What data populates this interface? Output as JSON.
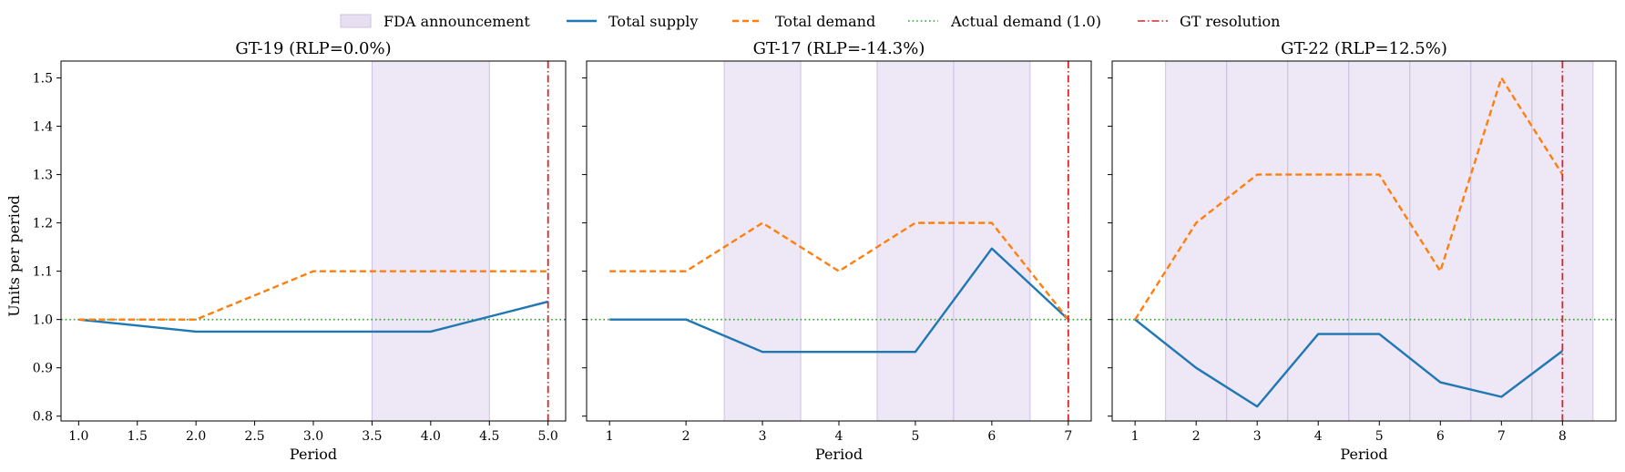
{
  "legend": {
    "items": [
      {
        "key": "fda",
        "label": "FDA announcement"
      },
      {
        "key": "supply",
        "label": "Total supply"
      },
      {
        "key": "demand",
        "label": "Total demand"
      },
      {
        "key": "actual",
        "label": "Actual demand (1.0)"
      },
      {
        "key": "gt",
        "label": "GT resolution"
      }
    ]
  },
  "colors": {
    "supply": "#1f77b4",
    "demand": "#ff7f0e",
    "actual": "#2ca02c",
    "gt": "#d62728",
    "fda_fill": "#e8dff2",
    "fda_edge": "#cfc0e3"
  },
  "shared_ylabel": "Units per period",
  "chart_data": [
    {
      "type": "line",
      "title": "GT-19 (RLP=0.0%)",
      "xlabel": "Period",
      "ylabel": "Units per period",
      "xlim": [
        0.85,
        5.15
      ],
      "ylim": [
        0.79,
        1.535
      ],
      "xticks": [
        1.0,
        1.5,
        2.0,
        2.5,
        3.0,
        3.5,
        4.0,
        4.5,
        5.0
      ],
      "xtick_labels": [
        "1.0",
        "1.5",
        "2.0",
        "2.5",
        "3.0",
        "3.5",
        "4.0",
        "4.5",
        "5.0"
      ],
      "yticks": [
        0.8,
        0.9,
        1.0,
        1.1,
        1.2,
        1.3,
        1.4,
        1.5
      ],
      "ytick_labels": [
        "0.8",
        "0.9",
        "1.0",
        "1.1",
        "1.2",
        "1.3",
        "1.4",
        "1.5"
      ],
      "show_ytick_labels": true,
      "x": [
        1,
        2,
        3,
        4,
        5
      ],
      "series": [
        {
          "name": "Total supply",
          "key": "supply",
          "values": [
            1.0,
            0.975,
            0.975,
            0.975,
            1.037
          ]
        },
        {
          "name": "Total demand",
          "key": "demand",
          "values": [
            1.0,
            1.0,
            1.1,
            1.1,
            1.1
          ]
        }
      ],
      "actual_demand": 1.0,
      "gt_resolution": 5,
      "fda_spans": [
        [
          3.5,
          4.5
        ]
      ]
    },
    {
      "type": "line",
      "title": "GT-17 (RLP=-14.3%)",
      "xlabel": "Period",
      "ylabel": "",
      "xlim": [
        0.7,
        7.3
      ],
      "ylim": [
        0.79,
        1.535
      ],
      "xticks": [
        1,
        2,
        3,
        4,
        5,
        6,
        7
      ],
      "xtick_labels": [
        "1",
        "2",
        "3",
        "4",
        "5",
        "6",
        "7"
      ],
      "yticks": [
        0.8,
        0.9,
        1.0,
        1.1,
        1.2,
        1.3,
        1.4,
        1.5
      ],
      "ytick_labels": [],
      "show_ytick_labels": false,
      "x": [
        1,
        2,
        3,
        4,
        5,
        6,
        7
      ],
      "series": [
        {
          "name": "Total supply",
          "key": "supply",
          "values": [
            1.0,
            1.0,
            0.933,
            0.933,
            0.933,
            1.147,
            1.0
          ]
        },
        {
          "name": "Total demand",
          "key": "demand",
          "values": [
            1.1,
            1.1,
            1.2,
            1.1,
            1.2,
            1.2,
            1.0
          ]
        }
      ],
      "actual_demand": 1.0,
      "gt_resolution": 7,
      "fda_spans": [
        [
          2.5,
          3.5
        ],
        [
          4.5,
          5.5
        ],
        [
          5.5,
          6.5
        ]
      ]
    },
    {
      "type": "line",
      "title": "GT-22 (RLP=12.5%)",
      "xlabel": "Period",
      "ylabel": "",
      "xlim": [
        0.625,
        8.875
      ],
      "ylim": [
        0.79,
        1.535
      ],
      "xticks": [
        1,
        2,
        3,
        4,
        5,
        6,
        7,
        8
      ],
      "xtick_labels": [
        "1",
        "2",
        "3",
        "4",
        "5",
        "6",
        "7",
        "8"
      ],
      "yticks": [
        0.8,
        0.9,
        1.0,
        1.1,
        1.2,
        1.3,
        1.4,
        1.5
      ],
      "ytick_labels": [],
      "show_ytick_labels": false,
      "x": [
        1,
        2,
        3,
        4,
        5,
        6,
        7,
        8
      ],
      "series": [
        {
          "name": "Total supply",
          "key": "supply",
          "values": [
            1.0,
            0.9,
            0.82,
            0.97,
            0.97,
            0.87,
            0.84,
            0.935
          ]
        },
        {
          "name": "Total demand",
          "key": "demand",
          "values": [
            1.0,
            1.2,
            1.3,
            1.3,
            1.3,
            1.1,
            1.5,
            1.3
          ]
        }
      ],
      "actual_demand": 1.0,
      "gt_resolution": 8,
      "fda_spans": [
        [
          1.5,
          2.5
        ],
        [
          2.5,
          3.5
        ],
        [
          3.5,
          4.5
        ],
        [
          4.5,
          5.5
        ],
        [
          5.5,
          6.5
        ],
        [
          6.5,
          7.5
        ],
        [
          7.5,
          8.5
        ]
      ]
    }
  ]
}
